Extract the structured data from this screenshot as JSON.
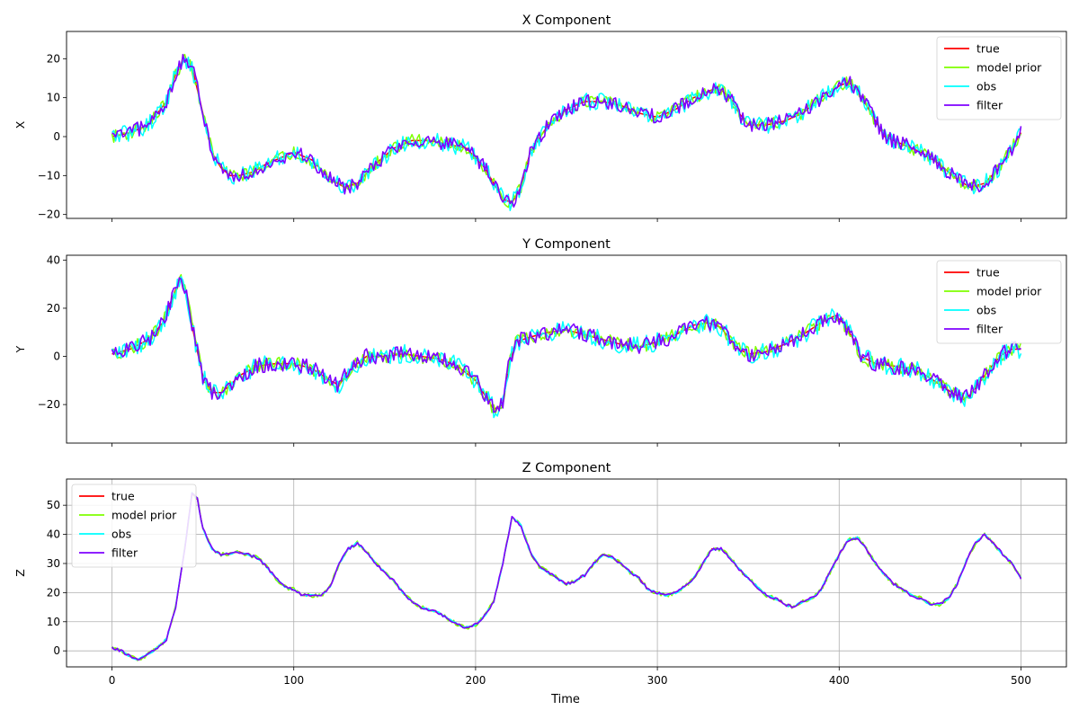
{
  "figure": {
    "xlabel": "Time"
  },
  "legend_labels": [
    "true",
    "model prior",
    "obs",
    "filter"
  ],
  "series_colors": {
    "true": "#ff0000",
    "model prior": "#7fff00",
    "obs": "#00ffff",
    "filter": "#7f00ff"
  },
  "chart_data": [
    {
      "type": "line",
      "title": "X Component",
      "xlabel": "",
      "ylabel": "X",
      "xlim": [
        -25,
        525
      ],
      "ylim": [
        -21,
        27
      ],
      "xticks": [
        0,
        100,
        200,
        300,
        400,
        500
      ],
      "yticks": [
        -20,
        -10,
        0,
        10,
        20
      ],
      "grid": false,
      "legend": "upper right",
      "series_names": [
        "true",
        "model prior",
        "obs",
        "filter"
      ],
      "true_curve": [
        [
          0,
          0
        ],
        [
          10,
          1
        ],
        [
          20,
          3
        ],
        [
          25,
          6
        ],
        [
          30,
          9
        ],
        [
          35,
          16
        ],
        [
          40,
          20
        ],
        [
          44,
          18
        ],
        [
          48,
          10
        ],
        [
          52,
          2
        ],
        [
          56,
          -5
        ],
        [
          60,
          -8
        ],
        [
          65,
          -10
        ],
        [
          70,
          -10
        ],
        [
          78,
          -9
        ],
        [
          85,
          -7
        ],
        [
          95,
          -5
        ],
        [
          100,
          -4
        ],
        [
          110,
          -6
        ],
        [
          120,
          -11
        ],
        [
          128,
          -13
        ],
        [
          135,
          -12
        ],
        [
          145,
          -7
        ],
        [
          155,
          -3
        ],
        [
          165,
          -1
        ],
        [
          175,
          -1
        ],
        [
          185,
          -2
        ],
        [
          195,
          -3
        ],
        [
          205,
          -8
        ],
        [
          210,
          -12
        ],
        [
          215,
          -16
        ],
        [
          220,
          -17
        ],
        [
          225,
          -13
        ],
        [
          230,
          -4
        ],
        [
          240,
          3
        ],
        [
          250,
          7
        ],
        [
          260,
          9
        ],
        [
          270,
          9
        ],
        [
          280,
          8
        ],
        [
          290,
          6
        ],
        [
          300,
          5
        ],
        [
          310,
          7
        ],
        [
          320,
          10
        ],
        [
          330,
          12
        ],
        [
          335,
          12
        ],
        [
          340,
          10
        ],
        [
          345,
          6
        ],
        [
          350,
          3
        ],
        [
          360,
          3
        ],
        [
          370,
          4
        ],
        [
          380,
          6
        ],
        [
          390,
          10
        ],
        [
          400,
          13
        ],
        [
          405,
          14
        ],
        [
          410,
          12
        ],
        [
          415,
          8
        ],
        [
          420,
          4
        ],
        [
          425,
          0
        ],
        [
          435,
          -2
        ],
        [
          445,
          -4
        ],
        [
          455,
          -7
        ],
        [
          465,
          -11
        ],
        [
          472,
          -13
        ],
        [
          480,
          -12
        ],
        [
          488,
          -8
        ],
        [
          495,
          -3
        ],
        [
          500,
          1
        ]
      ],
      "noise_amplitude": {
        "model prior": 1.6,
        "obs": 2.2,
        "filter": 1.9
      }
    },
    {
      "type": "line",
      "title": "Y Component",
      "xlabel": "",
      "ylabel": "Y",
      "xlim": [
        -25,
        525
      ],
      "ylim": [
        -36,
        42
      ],
      "xticks": [
        0,
        100,
        200,
        300,
        400,
        500
      ],
      "yticks": [
        -20,
        0,
        20,
        40
      ],
      "grid": false,
      "legend": "upper right",
      "series_names": [
        "true",
        "model prior",
        "obs",
        "filter"
      ],
      "true_curve": [
        [
          0,
          1
        ],
        [
          10,
          3
        ],
        [
          20,
          7
        ],
        [
          28,
          14
        ],
        [
          34,
          26
        ],
        [
          38,
          33
        ],
        [
          42,
          22
        ],
        [
          46,
          5
        ],
        [
          50,
          -8
        ],
        [
          55,
          -15
        ],
        [
          60,
          -15
        ],
        [
          65,
          -12
        ],
        [
          70,
          -8
        ],
        [
          80,
          -4
        ],
        [
          90,
          -3
        ],
        [
          100,
          -3
        ],
        [
          110,
          -5
        ],
        [
          120,
          -10
        ],
        [
          125,
          -12
        ],
        [
          130,
          -6
        ],
        [
          140,
          0
        ],
        [
          150,
          0
        ],
        [
          160,
          1
        ],
        [
          170,
          0
        ],
        [
          180,
          -1
        ],
        [
          190,
          -4
        ],
        [
          200,
          -10
        ],
        [
          205,
          -16
        ],
        [
          210,
          -22
        ],
        [
          215,
          -20
        ],
        [
          218,
          -5
        ],
        [
          222,
          6
        ],
        [
          230,
          8
        ],
        [
          240,
          10
        ],
        [
          250,
          11
        ],
        [
          260,
          9
        ],
        [
          270,
          7
        ],
        [
          280,
          5
        ],
        [
          290,
          4
        ],
        [
          300,
          6
        ],
        [
          310,
          9
        ],
        [
          320,
          13
        ],
        [
          328,
          14
        ],
        [
          335,
          12
        ],
        [
          340,
          7
        ],
        [
          345,
          3
        ],
        [
          350,
          1
        ],
        [
          360,
          2
        ],
        [
          370,
          5
        ],
        [
          380,
          9
        ],
        [
          390,
          14
        ],
        [
          398,
          17
        ],
        [
          402,
          14
        ],
        [
          408,
          7
        ],
        [
          412,
          0
        ],
        [
          420,
          -3
        ],
        [
          430,
          -4
        ],
        [
          440,
          -5
        ],
        [
          450,
          -9
        ],
        [
          460,
          -14
        ],
        [
          468,
          -18
        ],
        [
          472,
          -16
        ],
        [
          478,
          -10
        ],
        [
          485,
          -3
        ],
        [
          490,
          1
        ],
        [
          495,
          3
        ],
        [
          500,
          3
        ]
      ],
      "noise_amplitude": {
        "model prior": 2.8,
        "obs": 4.0,
        "filter": 3.3
      }
    },
    {
      "type": "line",
      "title": "Z Component",
      "xlabel": "Time",
      "ylabel": "Z",
      "xlim": [
        -25,
        525
      ],
      "ylim": [
        -5.5,
        59
      ],
      "xticks": [
        0,
        100,
        200,
        300,
        400,
        500
      ],
      "yticks": [
        0,
        10,
        20,
        30,
        40,
        50
      ],
      "grid": true,
      "legend": "upper left",
      "series_names": [
        "true",
        "model prior",
        "obs",
        "filter"
      ],
      "true_curve": [
        [
          0,
          1
        ],
        [
          5,
          0
        ],
        [
          10,
          -2
        ],
        [
          15,
          -3
        ],
        [
          20,
          -1
        ],
        [
          25,
          1
        ],
        [
          30,
          4
        ],
        [
          35,
          15
        ],
        [
          40,
          35
        ],
        [
          44,
          54
        ],
        [
          47,
          52
        ],
        [
          50,
          42
        ],
        [
          55,
          35
        ],
        [
          60,
          33
        ],
        [
          70,
          34
        ],
        [
          75,
          33
        ],
        [
          80,
          32
        ],
        [
          85,
          29
        ],
        [
          90,
          25
        ],
        [
          95,
          22
        ],
        [
          100,
          21
        ],
        [
          105,
          19
        ],
        [
          110,
          19
        ],
        [
          115,
          19
        ],
        [
          120,
          22
        ],
        [
          125,
          30
        ],
        [
          130,
          35
        ],
        [
          135,
          37
        ],
        [
          140,
          34
        ],
        [
          145,
          30
        ],
        [
          150,
          27
        ],
        [
          155,
          24
        ],
        [
          160,
          20
        ],
        [
          165,
          17
        ],
        [
          170,
          15
        ],
        [
          180,
          13
        ],
        [
          185,
          11
        ],
        [
          190,
          9
        ],
        [
          195,
          8
        ],
        [
          200,
          9
        ],
        [
          205,
          12
        ],
        [
          210,
          17
        ],
        [
          215,
          30
        ],
        [
          220,
          46
        ],
        [
          225,
          43
        ],
        [
          230,
          34
        ],
        [
          235,
          29
        ],
        [
          240,
          27
        ],
        [
          245,
          25
        ],
        [
          250,
          23
        ],
        [
          255,
          24
        ],
        [
          260,
          26
        ],
        [
          265,
          30
        ],
        [
          270,
          33
        ],
        [
          275,
          32
        ],
        [
          280,
          30
        ],
        [
          285,
          27
        ],
        [
          290,
          25
        ],
        [
          295,
          21
        ],
        [
          300,
          20
        ],
        [
          305,
          19
        ],
        [
          310,
          20
        ],
        [
          315,
          22
        ],
        [
          320,
          25
        ],
        [
          325,
          30
        ],
        [
          330,
          35
        ],
        [
          335,
          35
        ],
        [
          340,
          32
        ],
        [
          345,
          28
        ],
        [
          350,
          25
        ],
        [
          355,
          22
        ],
        [
          360,
          19
        ],
        [
          365,
          18
        ],
        [
          370,
          16
        ],
        [
          375,
          15
        ],
        [
          380,
          17
        ],
        [
          385,
          18
        ],
        [
          390,
          21
        ],
        [
          395,
          27
        ],
        [
          400,
          33
        ],
        [
          405,
          38
        ],
        [
          410,
          39
        ],
        [
          415,
          35
        ],
        [
          420,
          30
        ],
        [
          425,
          26
        ],
        [
          430,
          23
        ],
        [
          435,
          21
        ],
        [
          440,
          19
        ],
        [
          445,
          18
        ],
        [
          450,
          16
        ],
        [
          455,
          16
        ],
        [
          460,
          18
        ],
        [
          465,
          23
        ],
        [
          470,
          31
        ],
        [
          475,
          37
        ],
        [
          480,
          40
        ],
        [
          485,
          37
        ],
        [
          490,
          33
        ],
        [
          495,
          30
        ],
        [
          500,
          25
        ]
      ],
      "noise_amplitude": {
        "model prior": 0.7,
        "obs": 0.4,
        "filter": 0.5
      }
    }
  ]
}
